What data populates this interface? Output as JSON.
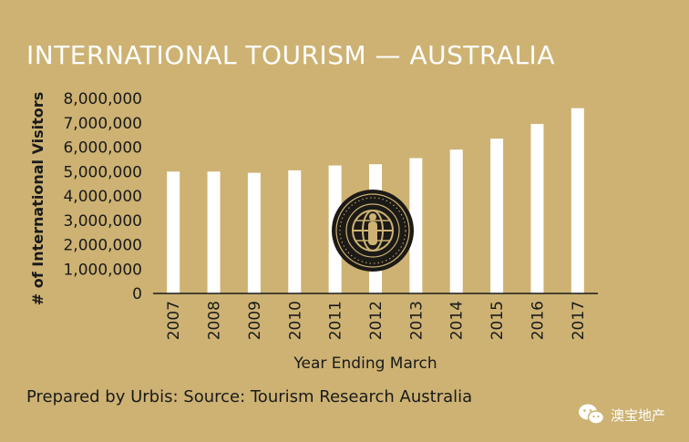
{
  "chart_data": {
    "type": "bar",
    "title": "INTERNATIONAL TOURISM — AUSTRALIA",
    "categories": [
      "2007",
      "2008",
      "2009",
      "2010",
      "2011",
      "2012",
      "2013",
      "2014",
      "2015",
      "2016",
      "2017"
    ],
    "values": [
      5000000,
      5000000,
      4950000,
      5050000,
      5250000,
      5300000,
      5550000,
      5900000,
      6350000,
      6950000,
      7600000
    ],
    "xlabel": "Year Ending March",
    "ylabel": "# of International Visitors",
    "ylim": [
      0,
      8000000
    ],
    "yticks": [
      "0",
      "1,000,000",
      "2,000,000",
      "3,000,000",
      "4,000,000",
      "5,000,000",
      "6,000,000",
      "7,000,000",
      "8,000,000"
    ],
    "grid": false,
    "source": "Prepared by Urbis: Source: Tourism Research Australia"
  },
  "colors": {
    "background": "#cdb273",
    "bar": "#ffffff",
    "text": "#1a1a1a",
    "title": "#ffffff",
    "badge": "#1c1a16",
    "badge_gold": "#cdb273"
  },
  "watermark": {
    "text": "澳宝地产",
    "icon": "wechat-icon"
  },
  "badge": {
    "icon": "globe-seal-icon"
  }
}
